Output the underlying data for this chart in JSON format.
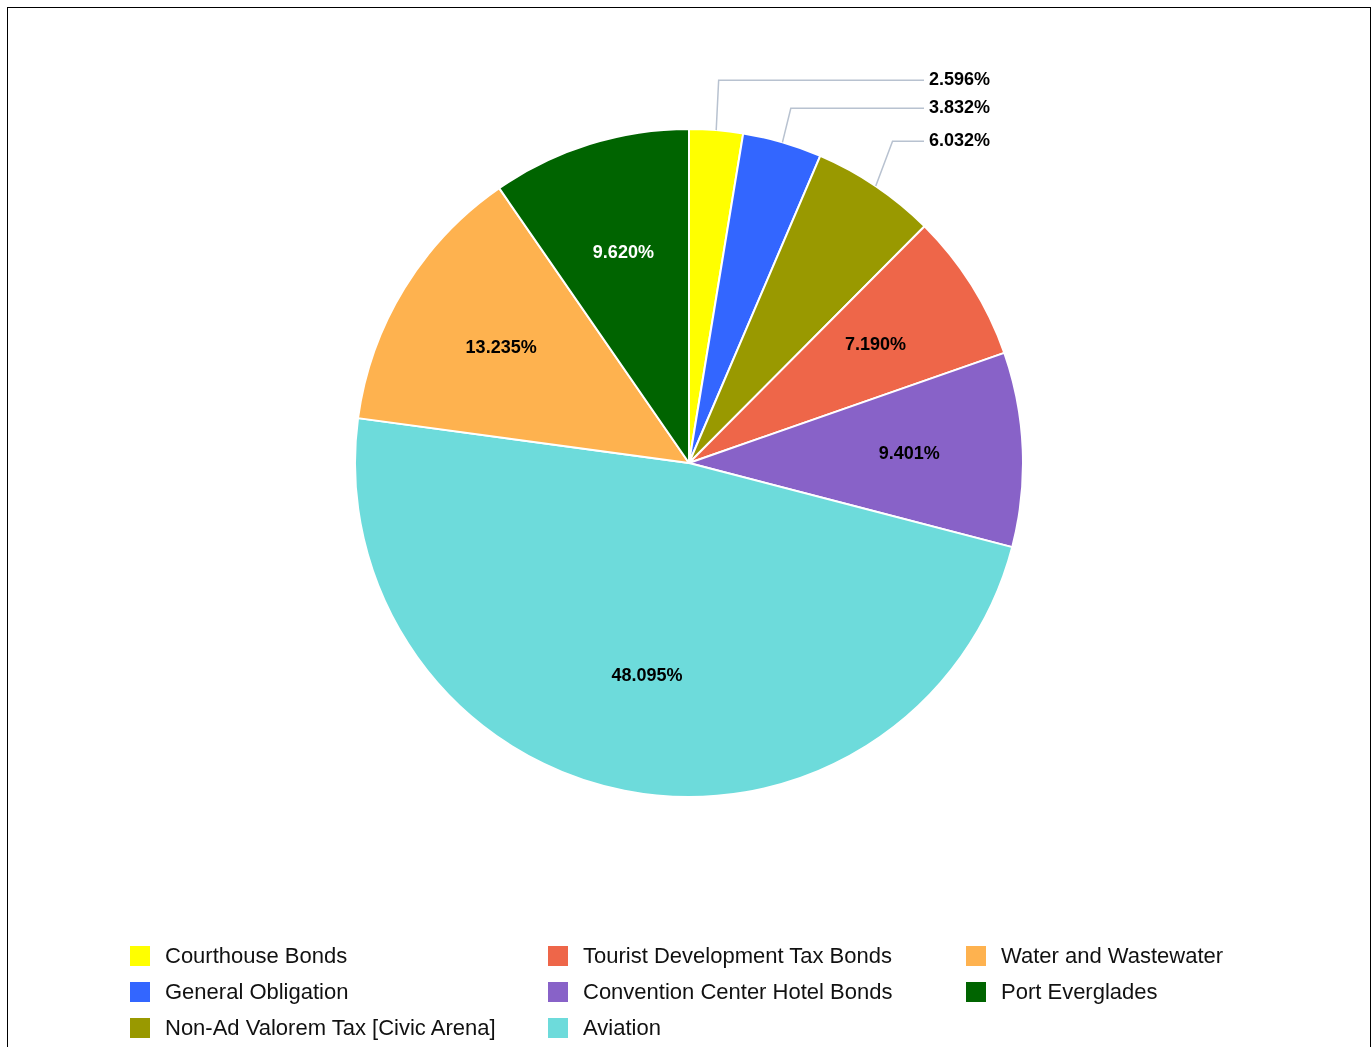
{
  "chart_data": {
    "type": "pie",
    "categories": [
      "Courthouse Bonds",
      "General Obligation",
      "Non-Ad Valorem Tax [Civic Arena]",
      "Tourist Development Tax Bonds",
      "Convention Center Hotel Bonds",
      "Aviation",
      "Water and Wastewater",
      "Port Everglades"
    ],
    "values": [
      2.596,
      3.832,
      6.032,
      7.19,
      9.401,
      48.095,
      13.235,
      9.62
    ],
    "colors": [
      "#ffff00",
      "#3366ff",
      "#999900",
      "#ee6649",
      "#8862c8",
      "#6ddbdb",
      "#feb24f",
      "#006400"
    ],
    "value_labels": [
      "2.596%",
      "3.832%",
      "6.032%",
      "7.190%",
      "9.401%",
      "48.095%",
      "13.235%",
      "9.620%"
    ],
    "legend": "bottom"
  }
}
